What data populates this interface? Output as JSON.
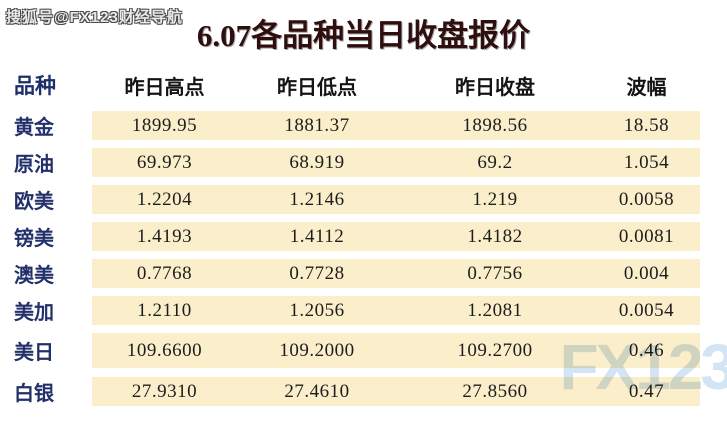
{
  "watermarks": {
    "top_left": "搜狐号@FX123财经导航",
    "logo": "FX123"
  },
  "colors": {
    "row_band_bg": "#fbeeca",
    "title_text": "#2f0e0e",
    "label_text": "#23306a",
    "value_text": "#1d1d1d",
    "logo_watermark": "#aecdeb"
  },
  "chart_data": {
    "type": "table",
    "title": "6.07各品种当日收盘报价",
    "columns": [
      "品种",
      "昨日高点",
      "昨日低点",
      "昨日收盘",
      "波幅"
    ],
    "rows": [
      [
        "黄金",
        "1899.95",
        "1881.37",
        "1898.56",
        "18.58"
      ],
      [
        "原油",
        "69.973",
        "68.919",
        "69.2",
        "1.054"
      ],
      [
        "欧美",
        "1.2204",
        "1.2146",
        "1.219",
        "0.0058"
      ],
      [
        "镑美",
        "1.4193",
        "1.4112",
        "1.4182",
        "0.0081"
      ],
      [
        "澳美",
        "0.7768",
        "0.7728",
        "0.7756",
        "0.004"
      ],
      [
        "美加",
        "1.2110",
        "1.2056",
        "1.2081",
        "0.0054"
      ],
      [
        "美日",
        "109.6600",
        "109.2000",
        "109.2700",
        "0.46"
      ],
      [
        "白银",
        "27.9310",
        "27.4610",
        "27.8560",
        "0.47"
      ]
    ]
  }
}
